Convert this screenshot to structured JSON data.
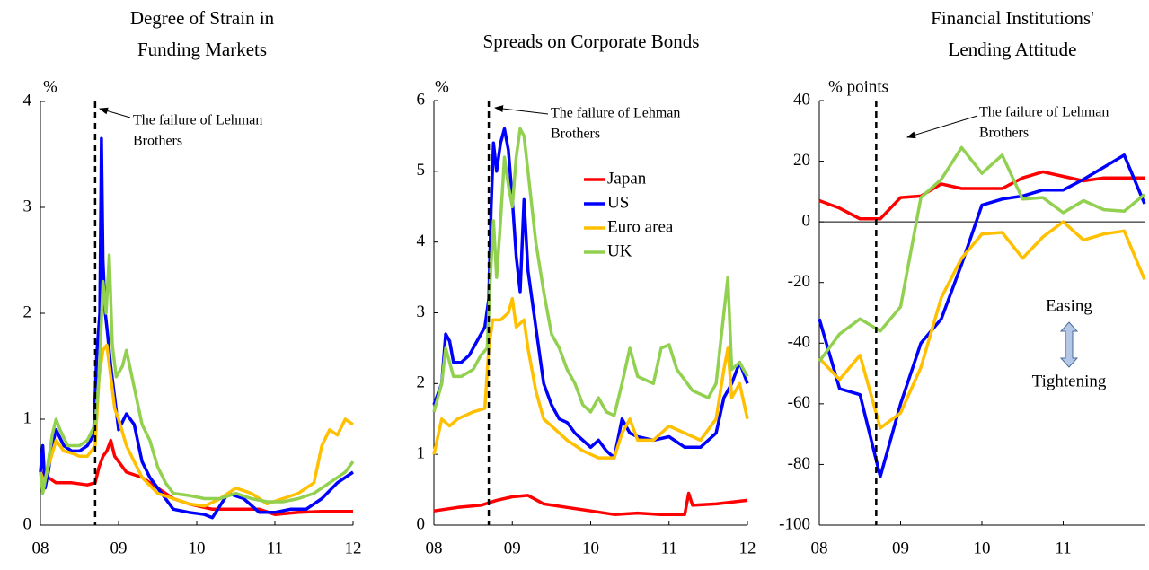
{
  "chart_data": [
    {
      "type": "line",
      "title": [
        "Degree of Strain in",
        "Funding Markets"
      ],
      "ylabel": "%",
      "xlim": [
        2008,
        2012
      ],
      "ylim": [
        0,
        4
      ],
      "xticks": [
        {
          "value": 2008,
          "label": "08"
        },
        {
          "value": 2009,
          "label": "09"
        },
        {
          "value": 2010,
          "label": "10"
        },
        {
          "value": 2011,
          "label": "11"
        },
        {
          "value": 2012,
          "label": "12"
        }
      ],
      "yticks": [
        0,
        1,
        2,
        3,
        4
      ],
      "event": {
        "x": 2008.7,
        "label": [
          "The failure of Lehman",
          "Brothers"
        ]
      },
      "legend": false,
      "series": [
        {
          "name": "Japan",
          "color": "#ff0000",
          "x": [
            2008.0,
            2008.1,
            2008.2,
            2008.4,
            2008.6,
            2008.7,
            2008.75,
            2008.8,
            2008.85,
            2008.9,
            2008.95,
            2009.0,
            2009.1,
            2009.3,
            2009.5,
            2009.7,
            2009.9,
            2010.2,
            2010.5,
            2010.8,
            2011.0,
            2011.3,
            2011.6,
            2012.0
          ],
          "values": [
            0.5,
            0.45,
            0.4,
            0.4,
            0.38,
            0.4,
            0.55,
            0.65,
            0.7,
            0.8,
            0.65,
            0.6,
            0.5,
            0.45,
            0.35,
            0.25,
            0.2,
            0.15,
            0.15,
            0.15,
            0.1,
            0.12,
            0.13,
            0.13
          ]
        },
        {
          "name": "US",
          "color": "#0000ff",
          "x": [
            2008.0,
            2008.03,
            2008.06,
            2008.1,
            2008.15,
            2008.2,
            2008.3,
            2008.4,
            2008.5,
            2008.6,
            2008.68,
            2008.72,
            2008.76,
            2008.78,
            2008.8,
            2008.83,
            2008.86,
            2008.9,
            2008.95,
            2009.0,
            2009.1,
            2009.2,
            2009.3,
            2009.4,
            2009.5,
            2009.6,
            2009.7,
            2009.9,
            2010.1,
            2010.2,
            2010.4,
            2010.6,
            2010.8,
            2011.0,
            2011.2,
            2011.4,
            2011.6,
            2011.8,
            2012.0
          ],
          "values": [
            0.5,
            0.75,
            0.35,
            0.5,
            0.75,
            0.9,
            0.75,
            0.7,
            0.7,
            0.75,
            0.85,
            1.6,
            2.0,
            3.65,
            2.5,
            2.0,
            1.8,
            1.5,
            1.2,
            0.9,
            1.05,
            0.95,
            0.6,
            0.45,
            0.35,
            0.25,
            0.15,
            0.12,
            0.1,
            0.07,
            0.3,
            0.25,
            0.12,
            0.12,
            0.15,
            0.15,
            0.25,
            0.4,
            0.5
          ]
        },
        {
          "name": "Euro area",
          "color": "#ffc000",
          "x": [
            2008.0,
            2008.05,
            2008.1,
            2008.2,
            2008.3,
            2008.4,
            2008.5,
            2008.6,
            2008.7,
            2008.75,
            2008.8,
            2008.85,
            2008.9,
            2008.95,
            2009.0,
            2009.1,
            2009.2,
            2009.3,
            2009.5,
            2009.7,
            2009.9,
            2010.1,
            2010.3,
            2010.5,
            2010.7,
            2010.9,
            2011.1,
            2011.3,
            2011.5,
            2011.6,
            2011.7,
            2011.8,
            2011.9,
            2012.0
          ],
          "values": [
            0.5,
            0.4,
            0.55,
            0.8,
            0.7,
            0.68,
            0.65,
            0.65,
            0.75,
            1.4,
            1.65,
            1.7,
            1.4,
            1.1,
            1.0,
            0.75,
            0.6,
            0.45,
            0.3,
            0.25,
            0.2,
            0.18,
            0.25,
            0.35,
            0.3,
            0.2,
            0.25,
            0.3,
            0.4,
            0.75,
            0.9,
            0.85,
            1.0,
            0.95
          ]
        },
        {
          "name": "UK",
          "color": "#92d050",
          "x": [
            2008.0,
            2008.03,
            2008.08,
            2008.15,
            2008.2,
            2008.25,
            2008.35,
            2008.5,
            2008.6,
            2008.7,
            2008.75,
            2008.8,
            2008.84,
            2008.88,
            2008.92,
            2008.97,
            2009.05,
            2009.1,
            2009.2,
            2009.3,
            2009.4,
            2009.5,
            2009.6,
            2009.7,
            2009.9,
            2010.1,
            2010.3,
            2010.5,
            2010.7,
            2010.9,
            2011.1,
            2011.3,
            2011.5,
            2011.7,
            2011.9,
            2012.0
          ],
          "values": [
            0.5,
            0.3,
            0.5,
            0.85,
            1.0,
            0.9,
            0.75,
            0.75,
            0.8,
            0.95,
            1.4,
            2.3,
            2.0,
            2.55,
            1.7,
            1.4,
            1.5,
            1.65,
            1.3,
            0.95,
            0.8,
            0.55,
            0.4,
            0.3,
            0.28,
            0.25,
            0.25,
            0.3,
            0.25,
            0.22,
            0.22,
            0.25,
            0.3,
            0.4,
            0.5,
            0.6
          ]
        }
      ]
    },
    {
      "type": "line",
      "title": [
        "Spreads on Corporate Bonds"
      ],
      "ylabel": "%",
      "xlim": [
        2008,
        2012
      ],
      "ylim": [
        0,
        6
      ],
      "xticks": [
        {
          "value": 2008,
          "label": "08"
        },
        {
          "value": 2009,
          "label": "09"
        },
        {
          "value": 2010,
          "label": "10"
        },
        {
          "value": 2011,
          "label": "11"
        },
        {
          "value": 2012,
          "label": "12"
        }
      ],
      "yticks": [
        0,
        1,
        2,
        3,
        4,
        5,
        6
      ],
      "event": {
        "x": 2008.7,
        "label": [
          "The failure of Lehman",
          "Brothers"
        ]
      },
      "legend": true,
      "series": [
        {
          "name": "Japan",
          "color": "#ff0000",
          "x": [
            2008.0,
            2008.3,
            2008.6,
            2008.8,
            2009.0,
            2009.2,
            2009.4,
            2009.7,
            2010.0,
            2010.3,
            2010.6,
            2010.9,
            2011.2,
            2011.25,
            2011.3,
            2011.6,
            2012.0
          ],
          "values": [
            0.2,
            0.25,
            0.28,
            0.35,
            0.4,
            0.42,
            0.3,
            0.25,
            0.2,
            0.15,
            0.17,
            0.15,
            0.15,
            0.45,
            0.28,
            0.3,
            0.35
          ]
        },
        {
          "name": "US",
          "color": "#0000ff",
          "x": [
            2008.0,
            2008.1,
            2008.15,
            2008.2,
            2008.25,
            2008.35,
            2008.45,
            2008.55,
            2008.65,
            2008.7,
            2008.73,
            2008.76,
            2008.8,
            2008.85,
            2008.9,
            2008.95,
            2009.0,
            2009.05,
            2009.1,
            2009.15,
            2009.2,
            2009.3,
            2009.4,
            2009.5,
            2009.6,
            2009.7,
            2009.8,
            2009.9,
            2010.0,
            2010.1,
            2010.2,
            2010.3,
            2010.4,
            2010.5,
            2010.6,
            2010.8,
            2011.0,
            2011.2,
            2011.4,
            2011.6,
            2011.7,
            2011.8,
            2011.9,
            2012.0
          ],
          "values": [
            1.7,
            2.0,
            2.7,
            2.6,
            2.3,
            2.3,
            2.4,
            2.6,
            2.8,
            3.2,
            4.5,
            5.4,
            5.0,
            5.4,
            5.6,
            5.3,
            4.6,
            3.8,
            3.3,
            4.6,
            3.6,
            2.8,
            2.0,
            1.7,
            1.5,
            1.45,
            1.3,
            1.2,
            1.1,
            1.2,
            1.05,
            0.95,
            1.5,
            1.3,
            1.25,
            1.2,
            1.25,
            1.1,
            1.1,
            1.3,
            1.8,
            2.0,
            2.3,
            2.0
          ]
        },
        {
          "name": "Euro area",
          "color": "#ffc000",
          "x": [
            2008.0,
            2008.1,
            2008.2,
            2008.3,
            2008.5,
            2008.65,
            2008.7,
            2008.75,
            2008.85,
            2008.95,
            2009.0,
            2009.05,
            2009.15,
            2009.2,
            2009.3,
            2009.4,
            2009.5,
            2009.7,
            2009.9,
            2010.1,
            2010.3,
            2010.4,
            2010.5,
            2010.6,
            2010.8,
            2011.0,
            2011.2,
            2011.4,
            2011.6,
            2011.7,
            2011.75,
            2011.8,
            2011.9,
            2012.0
          ],
          "values": [
            1.0,
            1.5,
            1.4,
            1.5,
            1.6,
            1.65,
            2.5,
            2.9,
            2.9,
            3.0,
            3.2,
            2.8,
            2.9,
            2.5,
            1.9,
            1.5,
            1.4,
            1.2,
            1.05,
            0.95,
            0.95,
            1.3,
            1.5,
            1.2,
            1.2,
            1.4,
            1.3,
            1.2,
            1.5,
            2.2,
            2.5,
            1.8,
            2.0,
            1.5
          ]
        },
        {
          "name": "UK",
          "color": "#92d050",
          "x": [
            2008.0,
            2008.1,
            2008.15,
            2008.2,
            2008.25,
            2008.35,
            2008.5,
            2008.6,
            2008.68,
            2008.72,
            2008.76,
            2008.8,
            2008.85,
            2008.9,
            2008.95,
            2009.0,
            2009.05,
            2009.1,
            2009.15,
            2009.2,
            2009.3,
            2009.4,
            2009.5,
            2009.6,
            2009.7,
            2009.8,
            2009.9,
            2010.0,
            2010.1,
            2010.2,
            2010.3,
            2010.4,
            2010.5,
            2010.6,
            2010.8,
            2010.9,
            2011.0,
            2011.1,
            2011.3,
            2011.5,
            2011.6,
            2011.7,
            2011.75,
            2011.8,
            2011.9,
            2012.0
          ],
          "values": [
            1.6,
            2.0,
            2.5,
            2.3,
            2.1,
            2.1,
            2.2,
            2.4,
            2.5,
            3.5,
            4.3,
            3.5,
            4.3,
            5.2,
            4.8,
            4.5,
            5.2,
            5.6,
            5.5,
            5.0,
            4.0,
            3.3,
            2.7,
            2.5,
            2.2,
            2.0,
            1.7,
            1.6,
            1.8,
            1.6,
            1.55,
            2.0,
            2.5,
            2.1,
            2.0,
            2.5,
            2.55,
            2.2,
            1.9,
            1.8,
            2.0,
            3.0,
            3.5,
            2.2,
            2.3,
            2.1
          ]
        }
      ]
    },
    {
      "type": "line",
      "title": [
        "Financial Institutions'",
        "Lending Attitude"
      ],
      "ylabel": "% points",
      "xlim": [
        2008,
        2012
      ],
      "ylim": [
        -100,
        40
      ],
      "xticks": [
        {
          "value": 2008,
          "label": "08"
        },
        {
          "value": 2009,
          "label": "09"
        },
        {
          "value": 2010,
          "label": "10"
        },
        {
          "value": 2011,
          "label": "11"
        }
      ],
      "yticks": [
        -100,
        -80,
        -60,
        -40,
        -20,
        0,
        20,
        40
      ],
      "zero_line": true,
      "event": {
        "x": 2008.7,
        "label": [
          "The failure of Lehman",
          "Brothers"
        ]
      },
      "annotations": [
        "Easing",
        "Tightening"
      ],
      "legend": false,
      "series": [
        {
          "name": "Japan",
          "color": "#ff0000",
          "x": [
            2008.0,
            2008.25,
            2008.5,
            2008.75,
            2009.0,
            2009.25,
            2009.5,
            2009.75,
            2010.0,
            2010.25,
            2010.5,
            2010.75,
            2011.0,
            2011.25,
            2011.5,
            2011.75,
            2012.0
          ],
          "values": [
            7,
            4.5,
            1,
            1,
            8,
            8.5,
            12.5,
            11,
            11,
            11,
            14.5,
            16.5,
            15,
            13.5,
            14.5,
            14.5,
            14.5
          ]
        },
        {
          "name": "US",
          "color": "#0000ff",
          "x": [
            2008.0,
            2008.25,
            2008.5,
            2008.75,
            2009.0,
            2009.25,
            2009.5,
            2009.75,
            2010.0,
            2010.25,
            2010.5,
            2010.75,
            2011.0,
            2011.25,
            2011.5,
            2011.75,
            2012.0
          ],
          "values": [
            -32,
            -55,
            -57,
            -84,
            -60,
            -40,
            -32,
            -14,
            5.5,
            7.5,
            8.5,
            10.5,
            10.5,
            14,
            18,
            22,
            6
          ]
        },
        {
          "name": "Euro area",
          "color": "#ffc000",
          "x": [
            2008.0,
            2008.25,
            2008.5,
            2008.75,
            2009.0,
            2009.25,
            2009.5,
            2009.75,
            2010.0,
            2010.25,
            2010.5,
            2010.75,
            2011.0,
            2011.25,
            2011.5,
            2011.75,
            2012.0
          ],
          "values": [
            -45,
            -52,
            -44,
            -68,
            -63,
            -48,
            -25,
            -12,
            -4,
            -3.5,
            -12,
            -5,
            0,
            -6,
            -4,
            -3,
            -19
          ]
        },
        {
          "name": "UK",
          "color": "#92d050",
          "x": [
            2008.0,
            2008.25,
            2008.5,
            2008.75,
            2009.0,
            2009.25,
            2009.5,
            2009.75,
            2010.0,
            2010.25,
            2010.5,
            2010.75,
            2011.0,
            2011.25,
            2011.5,
            2011.75,
            2012.0
          ],
          "values": [
            -46,
            -37,
            -32,
            -36,
            -28,
            8,
            14,
            24.5,
            16,
            22,
            7.5,
            8,
            3,
            7,
            4,
            3.5,
            9
          ]
        }
      ]
    }
  ]
}
